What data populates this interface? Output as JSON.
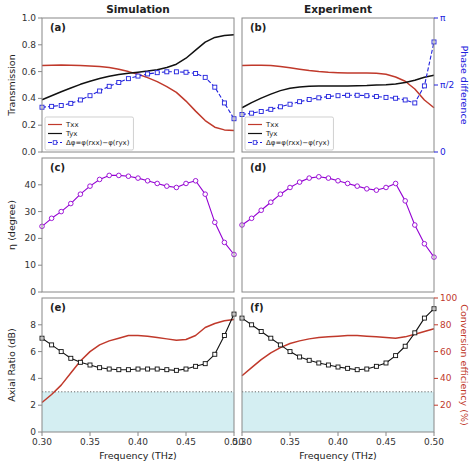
{
  "chart_data": [
    {
      "type": "line",
      "title": "Simulation",
      "annotation": "(a)",
      "x": [
        0.3,
        0.31,
        0.32,
        0.33,
        0.34,
        0.35,
        0.36,
        0.37,
        0.38,
        0.39,
        0.4,
        0.41,
        0.42,
        0.43,
        0.44,
        0.45,
        0.46,
        0.47,
        0.48,
        0.49,
        0.5
      ],
      "xlim": [
        0.3,
        0.5
      ],
      "ylim": [
        0,
        1
      ],
      "yticks": [
        {
          "value": 0,
          "label": "0.0"
        },
        0.2,
        0.4,
        0.6,
        0.8,
        {
          "value": 1,
          "label": "1.0"
        }
      ],
      "y2lim": [
        0,
        3.14159265
      ],
      "y_label": "Transmission",
      "legend": "lower left",
      "series": [
        {
          "name": "Txx",
          "color": "#c0392b",
          "values": [
            0.645,
            0.648,
            0.65,
            0.648,
            0.645,
            0.642,
            0.638,
            0.63,
            0.618,
            0.6,
            0.58,
            0.555,
            0.525,
            0.488,
            0.445,
            0.38,
            0.305,
            0.235,
            0.185,
            0.165,
            0.16
          ]
        },
        {
          "name": "Tyx",
          "color": "#111111",
          "values": [
            0.39,
            0.42,
            0.45,
            0.478,
            0.505,
            0.528,
            0.548,
            0.565,
            0.578,
            0.588,
            0.596,
            0.604,
            0.614,
            0.63,
            0.655,
            0.7,
            0.76,
            0.82,
            0.855,
            0.87,
            0.875
          ]
        },
        {
          "name": "Δφ=φ(rxx)−φ(ryx)",
          "color": "#2020dd",
          "axis": "y2",
          "marker": "square",
          "line_style": "dashed",
          "values": [
            1.05,
            1.07,
            1.09,
            1.14,
            1.22,
            1.32,
            1.43,
            1.54,
            1.63,
            1.72,
            1.78,
            1.83,
            1.86,
            1.88,
            1.88,
            1.87,
            1.84,
            1.75,
            1.52,
            1.15,
            0.78
          ]
        }
      ]
    },
    {
      "type": "line",
      "title": "Experiment",
      "annotation": "(b)",
      "x": [
        0.3,
        0.31,
        0.32,
        0.33,
        0.34,
        0.35,
        0.36,
        0.37,
        0.38,
        0.39,
        0.4,
        0.41,
        0.42,
        0.43,
        0.44,
        0.45,
        0.46,
        0.47,
        0.48,
        0.49,
        0.5
      ],
      "xlim": [
        0.3,
        0.5
      ],
      "ylim": [
        0,
        1
      ],
      "y2lim": [
        0,
        3.14159265
      ],
      "y2ticks": [
        0,
        {
          "value": 1.570796325,
          "label": "π/2"
        },
        {
          "value": 3.14159265,
          "label": "π"
        }
      ],
      "y2_label": "Phase difference",
      "legend": "lower left",
      "series": [
        {
          "name": "Txx",
          "color": "#c0392b",
          "values": [
            0.645,
            0.648,
            0.648,
            0.645,
            0.638,
            0.628,
            0.618,
            0.608,
            0.6,
            0.595,
            0.592,
            0.59,
            0.59,
            0.59,
            0.588,
            0.58,
            0.56,
            0.528,
            0.47,
            0.388,
            0.33
          ]
        },
        {
          "name": "Tyx",
          "color": "#111111",
          "values": [
            0.33,
            0.368,
            0.402,
            0.432,
            0.458,
            0.475,
            0.485,
            0.49,
            0.492,
            0.492,
            0.492,
            0.492,
            0.494,
            0.496,
            0.5,
            0.502,
            0.508,
            0.518,
            0.535,
            0.558,
            0.572
          ]
        },
        {
          "name": "Δφ=φ(rxx)−φ(ryx)",
          "color": "#2020dd",
          "axis": "y2",
          "marker": "square",
          "line_style": "dashed",
          "values": [
            0.88,
            0.91,
            0.95,
            1.0,
            1.06,
            1.12,
            1.18,
            1.23,
            1.27,
            1.3,
            1.32,
            1.33,
            1.33,
            1.32,
            1.3,
            1.28,
            1.26,
            1.22,
            1.15,
            1.55,
            2.58
          ]
        }
      ]
    },
    {
      "type": "line",
      "annotation": "(c)",
      "x": [
        0.3,
        0.31,
        0.32,
        0.33,
        0.34,
        0.35,
        0.36,
        0.37,
        0.38,
        0.39,
        0.4,
        0.41,
        0.42,
        0.43,
        0.44,
        0.45,
        0.46,
        0.47,
        0.48,
        0.49,
        0.5
      ],
      "xlim": [
        0.3,
        0.5
      ],
      "ylim": [
        0,
        50
      ],
      "yticks": [
        0,
        10,
        20,
        30,
        40
      ],
      "y_label": "η (degree)",
      "series": [
        {
          "color": "#9400d3",
          "marker": "circle",
          "values": [
            24.5,
            27.5,
            30.0,
            33.0,
            36.5,
            39.5,
            42.0,
            43.5,
            43.5,
            43.2,
            42.5,
            41.5,
            40.5,
            39.5,
            39.0,
            40.5,
            41.5,
            36.5,
            26.0,
            18.5,
            14.0
          ]
        }
      ]
    },
    {
      "type": "line",
      "annotation": "(d)",
      "x": [
        0.3,
        0.31,
        0.32,
        0.33,
        0.34,
        0.35,
        0.36,
        0.37,
        0.38,
        0.39,
        0.4,
        0.41,
        0.42,
        0.43,
        0.44,
        0.45,
        0.46,
        0.47,
        0.48,
        0.49,
        0.5
      ],
      "xlim": [
        0.3,
        0.5
      ],
      "ylim": [
        0,
        50
      ],
      "series": [
        {
          "color": "#9400d3",
          "marker": "circle",
          "values": [
            25.0,
            27.5,
            30.5,
            33.5,
            36.5,
            39.0,
            41.0,
            42.5,
            43.0,
            42.5,
            41.5,
            40.5,
            39.5,
            38.5,
            38.0,
            39.0,
            40.5,
            34.0,
            25.0,
            18.0,
            13.0
          ]
        }
      ]
    },
    {
      "type": "line",
      "annotation": "(e)",
      "x": [
        0.3,
        0.31,
        0.32,
        0.33,
        0.34,
        0.35,
        0.36,
        0.37,
        0.38,
        0.39,
        0.4,
        0.41,
        0.42,
        0.43,
        0.44,
        0.45,
        0.46,
        0.47,
        0.48,
        0.49,
        0.5
      ],
      "xlim": [
        0.3,
        0.5
      ],
      "xticks": [
        {
          "value": 0.3,
          "label": "0.30"
        },
        {
          "value": 0.35,
          "label": "0.35"
        },
        {
          "value": 0.4,
          "label": "0.40"
        },
        {
          "value": 0.45,
          "label": "0.45"
        },
        {
          "value": 0.5,
          "label": "0.50"
        }
      ],
      "x_label": "Frequency (THz)",
      "ylim": [
        0,
        10
      ],
      "yticks": [
        0,
        2,
        4,
        6,
        8
      ],
      "y2lim": [
        0,
        100
      ],
      "y_label": "Axial Ratio (dB)",
      "threshold": {
        "value": 3.0,
        "color": "dimgray",
        "fill": "#b0e0e8",
        "line_style": "dotted"
      },
      "series": [
        {
          "color": "#c0392b",
          "axis": "y2",
          "values": [
            22.0,
            28.0,
            35.0,
            44.0,
            53.0,
            60.0,
            65.0,
            68.0,
            70.0,
            72.0,
            72.0,
            71.5,
            70.5,
            69.5,
            68.5,
            69.0,
            72.0,
            78.0,
            81.0,
            83.0,
            84.0
          ]
        },
        {
          "color": "#111111",
          "marker": "square",
          "values": [
            7.0,
            6.5,
            6.0,
            5.5,
            5.2,
            5.0,
            4.8,
            4.7,
            4.65,
            4.65,
            4.7,
            4.7,
            4.7,
            4.65,
            4.6,
            4.7,
            4.9,
            5.1,
            5.8,
            7.2,
            8.8
          ]
        }
      ]
    },
    {
      "type": "line",
      "annotation": "(f)",
      "x": [
        0.3,
        0.31,
        0.32,
        0.33,
        0.34,
        0.35,
        0.36,
        0.37,
        0.38,
        0.39,
        0.4,
        0.41,
        0.42,
        0.43,
        0.44,
        0.45,
        0.46,
        0.47,
        0.48,
        0.49,
        0.5
      ],
      "xlim": [
        0.3,
        0.5
      ],
      "xticks": [
        {
          "value": 0.3,
          "label": "0.30"
        },
        {
          "value": 0.35,
          "label": "0.35"
        },
        {
          "value": 0.4,
          "label": "0.40"
        },
        {
          "value": 0.45,
          "label": "0.45"
        },
        {
          "value": 0.5,
          "label": "0.50"
        }
      ],
      "x_label": "Frequency (THz)",
      "ylim": [
        0,
        10
      ],
      "y2lim": [
        0,
        100
      ],
      "y2ticks": [
        20,
        40,
        60,
        80,
        100
      ],
      "y2_label": "Conversion efficiency (%)",
      "threshold": {
        "value": 3.0,
        "color": "dimgray",
        "fill": "#b0e0e8",
        "line_style": "dotted"
      },
      "series": [
        {
          "color": "#c0392b",
          "axis": "y2",
          "values": [
            42.0,
            48.0,
            54.0,
            59.0,
            63.0,
            66.0,
            68.0,
            69.5,
            70.5,
            71.0,
            71.5,
            72.0,
            72.0,
            71.5,
            71.0,
            70.5,
            70.0,
            71.0,
            73.0,
            75.0,
            77.0
          ]
        },
        {
          "color": "#111111",
          "marker": "square",
          "values": [
            8.5,
            8.0,
            7.5,
            7.0,
            6.5,
            6.0,
            5.6,
            5.35,
            5.15,
            5.0,
            4.85,
            4.75,
            4.65,
            4.7,
            4.9,
            5.15,
            5.7,
            6.4,
            7.4,
            8.5,
            9.2
          ]
        }
      ]
    }
  ]
}
